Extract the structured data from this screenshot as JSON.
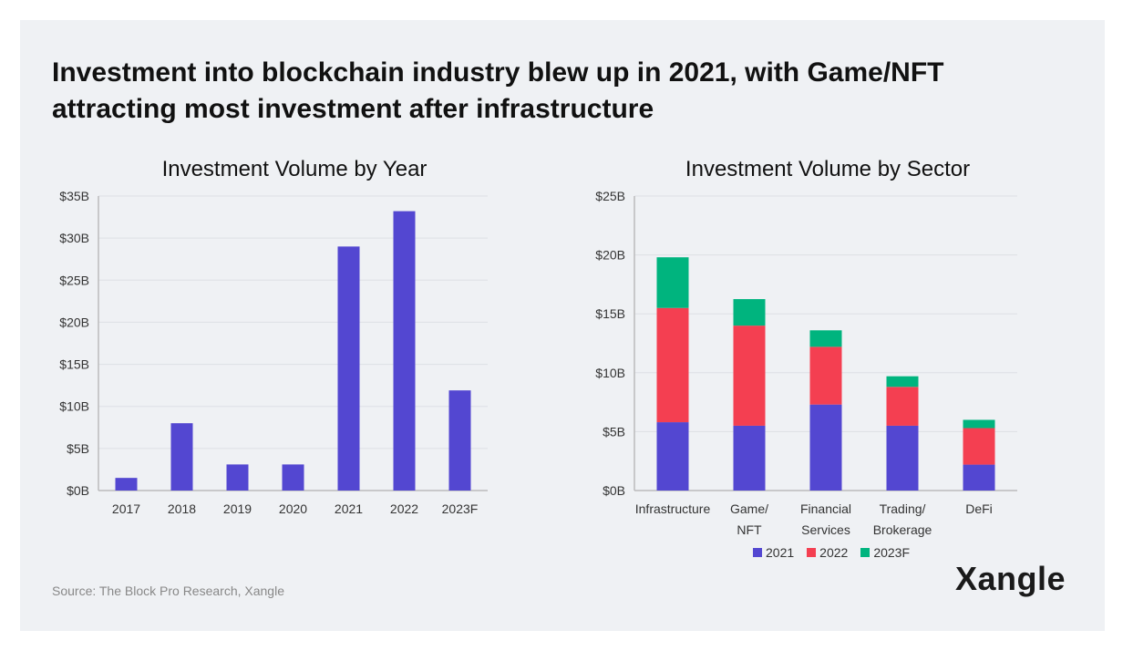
{
  "title": "Investment into blockchain industry blew up in 2021, with Game/NFT attracting most investment after infrastructure",
  "source": "Source: The Block Pro Research, Xangle",
  "logo": "Xangle",
  "chart_data": [
    {
      "type": "bar",
      "title": "Investment Volume by Year",
      "categories": [
        "2017",
        "2018",
        "2019",
        "2020",
        "2021",
        "2022",
        "2023F"
      ],
      "values": [
        1.5,
        8.0,
        3.1,
        3.1,
        29.0,
        33.2,
        11.9
      ],
      "ylabel": "",
      "xlabel": "",
      "ylim": [
        0,
        35
      ],
      "yticks": [
        "$0B",
        "$5B",
        "$10B",
        "$15B",
        "$20B",
        "$25B",
        "$30B",
        "$35B"
      ],
      "grid": true,
      "color": "#5347d1"
    },
    {
      "type": "bar",
      "stacked": true,
      "title": "Investment Volume by Sector",
      "categories": [
        "Infrastructure",
        "Game/ NFT",
        "Financial Services",
        "Trading/ Brokerage",
        "DeFi"
      ],
      "series": [
        {
          "name": "2021",
          "color": "#5347d1",
          "values": [
            5.8,
            5.5,
            7.3,
            5.5,
            2.2
          ]
        },
        {
          "name": "2022",
          "color": "#f43f51",
          "values": [
            9.7,
            8.5,
            4.9,
            3.3,
            3.1
          ]
        },
        {
          "name": "2023F",
          "color": "#00b47e",
          "values": [
            4.3,
            2.25,
            1.4,
            0.9,
            0.7
          ]
        }
      ],
      "ylim": [
        0,
        25
      ],
      "yticks": [
        "$0B",
        "$5B",
        "$10B",
        "$15B",
        "$20B",
        "$25B"
      ],
      "grid": true,
      "legend": "bottom"
    }
  ]
}
